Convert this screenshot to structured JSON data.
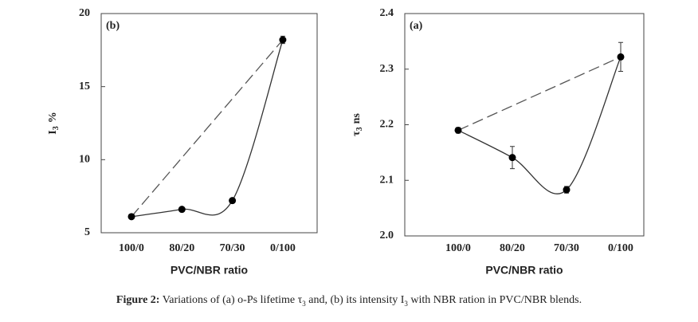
{
  "chart_data": [
    {
      "type": "line",
      "panel_label": "(b)",
      "ylabel_main": "I",
      "ylabel_sub": "3",
      "ylabel_unit": "%",
      "xlabel": "PVC/NBR ratio",
      "categories": [
        "100/0",
        "80/20",
        "70/30",
        "0/100"
      ],
      "values": [
        6.1,
        6.6,
        7.2,
        18.2
      ],
      "errors": [
        0.1,
        0.1,
        0.1,
        0.25
      ],
      "color": "#000000",
      "ylim": [
        5,
        20
      ],
      "yticks": [
        5,
        10,
        15,
        20
      ]
    },
    {
      "type": "line",
      "panel_label": "(a)",
      "ylabel_main": "τ",
      "ylabel_sub": "3",
      "ylabel_unit": "ns",
      "xlabel": "PVC/NBR ratio",
      "categories": [
        "100/0",
        "80/20",
        "70/30",
        "0/100"
      ],
      "values": [
        2.19,
        2.141,
        2.083,
        2.322
      ],
      "errors": [
        0.005,
        0.02,
        0.006,
        0.026
      ],
      "color": "#000000",
      "ylim": [
        2.0,
        2.4
      ],
      "yticks": [
        {
          "value": 2.0,
          "label": "2.0"
        },
        2.1,
        2.2,
        2.3,
        2.4
      ]
    }
  ],
  "caption": {
    "label": "Figure 2:",
    "text1": "Variations of (a) o-Ps lifetime τ",
    "sub1": "3",
    "text2": "and, (b) its intensity I",
    "sub2": "3",
    "text3": "with NBR ration in PVC/NBR blends."
  }
}
